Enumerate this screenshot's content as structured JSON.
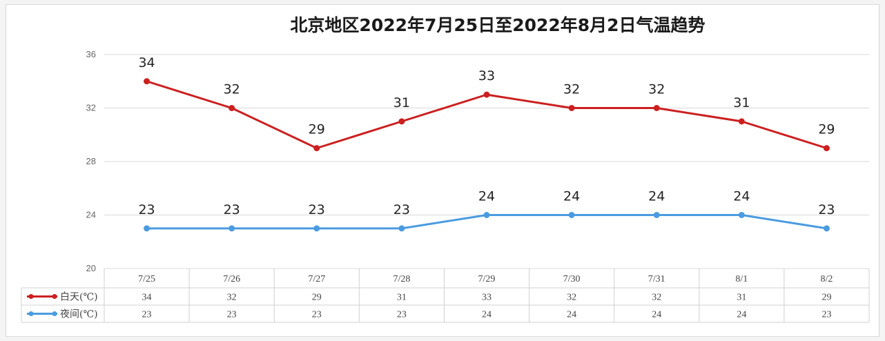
{
  "chart_data": {
    "type": "line",
    "title": "北京地区2022年7月25日至2022年8月2日气温趋势",
    "categories": [
      "7/25",
      "7/26",
      "7/27",
      "7/28",
      "7/29",
      "7/30",
      "7/31",
      "8/1",
      "8/2"
    ],
    "series": [
      {
        "name": "白天(℃)",
        "color": "#cc1f1f",
        "values": [
          34,
          32,
          29,
          31,
          33,
          32,
          32,
          31,
          29
        ]
      },
      {
        "name": "夜间(℃)",
        "color": "#4a9be0",
        "values": [
          23,
          23,
          23,
          23,
          24,
          24,
          24,
          24,
          23
        ]
      }
    ],
    "ylim": [
      20,
      36
    ],
    "yticks": [
      20,
      24,
      28,
      32,
      36
    ],
    "grid": true,
    "data_labels": true,
    "legend": "data-table-bottom",
    "xlabel": "",
    "ylabel": ""
  }
}
